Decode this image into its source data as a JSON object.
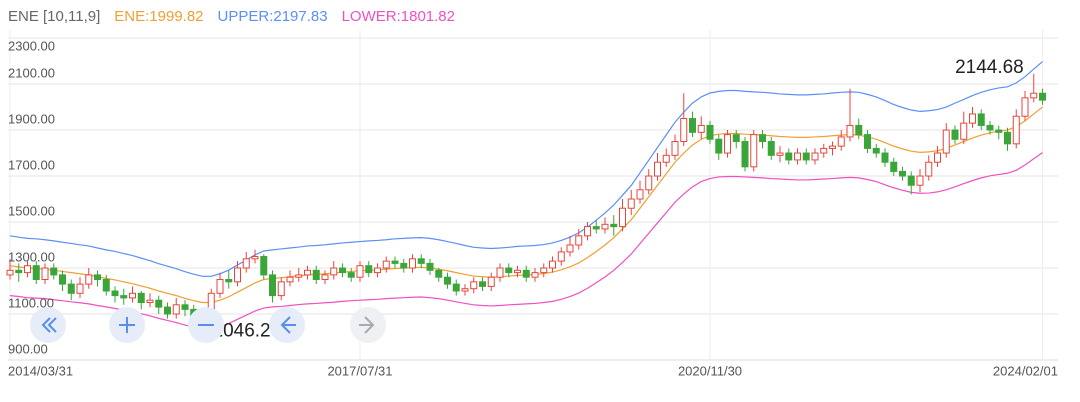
{
  "chart_data": {
    "type": "candlestick",
    "title": "ENE [10,11,9]",
    "categories": [
      "2014/03/31",
      null,
      null,
      null,
      null,
      null,
      null,
      null,
      null,
      null,
      null,
      null,
      null,
      null,
      null,
      null,
      null,
      null,
      null,
      null,
      null,
      null,
      null,
      null,
      null,
      null,
      null,
      null,
      null,
      null,
      null,
      null,
      null,
      null,
      null,
      null,
      null,
      null,
      null,
      null,
      "2017/07/31",
      null,
      null,
      null,
      null,
      null,
      null,
      null,
      null,
      null,
      null,
      null,
      null,
      null,
      null,
      null,
      null,
      null,
      null,
      null,
      null,
      null,
      null,
      null,
      null,
      null,
      null,
      null,
      null,
      null,
      null,
      null,
      null,
      null,
      null,
      null,
      null,
      null,
      null,
      null,
      "2020/11/30",
      null,
      null,
      null,
      null,
      null,
      null,
      null,
      null,
      null,
      null,
      null,
      null,
      null,
      null,
      null,
      null,
      null,
      null,
      null,
      null,
      null,
      null,
      null,
      null,
      null,
      null,
      null,
      null,
      null,
      null,
      null,
      null,
      null,
      null,
      null,
      null,
      null,
      "2024/02/01"
    ],
    "open": [
      1270,
      1290,
      1280,
      1310,
      1250,
      1300,
      1270,
      1230,
      1190,
      1230,
      1270,
      1250,
      1200,
      1180,
      1170,
      1190,
      1150,
      1160,
      1130,
      1100,
      1140,
      1120,
      1080,
      1090,
      1190,
      1250,
      1240,
      1300,
      1340,
      1350,
      1270,
      1180,
      1240,
      1260,
      1270,
      1290,
      1250,
      1270,
      1300,
      1280,
      1260,
      1310,
      1280,
      1300,
      1330,
      1320,
      1300,
      1340,
      1320,
      1290,
      1260,
      1230,
      1200,
      1210,
      1240,
      1220,
      1260,
      1300,
      1280,
      1290,
      1260,
      1280,
      1300,
      1330,
      1370,
      1400,
      1440,
      1480,
      1470,
      1490,
      1480,
      1560,
      1600,
      1640,
      1700,
      1760,
      1790,
      1850,
      1950,
      1890,
      1920,
      1860,
      1800,
      1880,
      1850,
      1740,
      1880,
      1850,
      1790,
      1800,
      1770,
      1800,
      1770,
      1800,
      1820,
      1830,
      1870,
      1920,
      1880,
      1820,
      1800,
      1760,
      1720,
      1700,
      1660,
      1700,
      1760,
      1800,
      1900,
      1860,
      1930,
      1970,
      1920,
      1900,
      1890,
      1840,
      1960,
      2040,
      2060
    ],
    "high": [
      1340,
      1320,
      1330,
      1330,
      1320,
      1320,
      1290,
      1250,
      1260,
      1300,
      1290,
      1270,
      1220,
      1210,
      1220,
      1200,
      1190,
      1180,
      1150,
      1170,
      1160,
      1140,
      1110,
      1210,
      1280,
      1290,
      1330,
      1370,
      1380,
      1360,
      1290,
      1260,
      1290,
      1300,
      1310,
      1310,
      1290,
      1330,
      1320,
      1300,
      1330,
      1330,
      1320,
      1350,
      1350,
      1340,
      1360,
      1360,
      1340,
      1300,
      1280,
      1250,
      1230,
      1260,
      1260,
      1280,
      1320,
      1320,
      1310,
      1310,
      1300,
      1320,
      1350,
      1390,
      1440,
      1470,
      1500,
      1510,
      1520,
      1530,
      1600,
      1640,
      1680,
      1730,
      1800,
      1820,
      1880,
      2060,
      1980,
      1960,
      1940,
      1880,
      1900,
      1900,
      1870,
      1900,
      1900,
      1870,
      1830,
      1820,
      1820,
      1820,
      1820,
      1840,
      1850,
      1900,
      2080,
      1950,
      1900,
      1840,
      1820,
      1780,
      1740,
      1720,
      1730,
      1790,
      1830,
      1930,
      1920,
      1980,
      2000,
      1990,
      1940,
      1920,
      1910,
      1990,
      2070,
      2144.68,
      2080
    ],
    "low": [
      1250,
      1240,
      1260,
      1230,
      1230,
      1250,
      1200,
      1160,
      1170,
      1210,
      1220,
      1180,
      1150,
      1140,
      1150,
      1120,
      1130,
      1100,
      1080,
      1080,
      1090,
      1060,
      1046.23,
      1070,
      1170,
      1210,
      1220,
      1280,
      1320,
      1250,
      1150,
      1160,
      1220,
      1240,
      1250,
      1230,
      1230,
      1250,
      1260,
      1240,
      1240,
      1260,
      1260,
      1280,
      1300,
      1280,
      1280,
      1300,
      1270,
      1240,
      1210,
      1180,
      1180,
      1190,
      1200,
      1200,
      1240,
      1260,
      1260,
      1240,
      1240,
      1260,
      1280,
      1310,
      1350,
      1380,
      1420,
      1450,
      1450,
      1440,
      1460,
      1530,
      1580,
      1620,
      1680,
      1740,
      1770,
      1830,
      1870,
      1860,
      1840,
      1770,
      1780,
      1820,
      1720,
      1720,
      1820,
      1770,
      1760,
      1750,
      1750,
      1750,
      1750,
      1780,
      1790,
      1810,
      1850,
      1860,
      1800,
      1780,
      1740,
      1700,
      1680,
      1620,
      1630,
      1680,
      1740,
      1780,
      1840,
      1840,
      1910,
      1900,
      1880,
      1860,
      1810,
      1820,
      1940,
      2020,
      2010
    ],
    "close": [
      1290,
      1280,
      1310,
      1250,
      1300,
      1270,
      1230,
      1190,
      1230,
      1270,
      1250,
      1200,
      1180,
      1170,
      1190,
      1150,
      1160,
      1130,
      1100,
      1140,
      1120,
      1080,
      1090,
      1190,
      1250,
      1240,
      1300,
      1340,
      1350,
      1270,
      1180,
      1240,
      1260,
      1270,
      1290,
      1250,
      1270,
      1300,
      1280,
      1260,
      1310,
      1280,
      1300,
      1330,
      1320,
      1300,
      1340,
      1320,
      1290,
      1260,
      1230,
      1200,
      1210,
      1240,
      1220,
      1260,
      1300,
      1280,
      1290,
      1260,
      1280,
      1300,
      1330,
      1370,
      1400,
      1440,
      1480,
      1470,
      1490,
      1480,
      1560,
      1600,
      1640,
      1700,
      1760,
      1790,
      1850,
      1950,
      1890,
      1920,
      1860,
      1800,
      1880,
      1850,
      1740,
      1880,
      1850,
      1790,
      1800,
      1770,
      1800,
      1770,
      1800,
      1820,
      1830,
      1870,
      1920,
      1880,
      1820,
      1800,
      1760,
      1720,
      1700,
      1660,
      1700,
      1760,
      1800,
      1900,
      1860,
      1930,
      1970,
      1920,
      1900,
      1890,
      1840,
      1960,
      2040,
      2060,
      2030
    ],
    "up_color": "#e8453c",
    "down_color": "#3aa63a",
    "series": [
      {
        "name": "ENE:1999.82",
        "color": "#f0a030",
        "values": [
          1310,
          1305,
          1300,
          1298,
          1295,
          1290,
          1285,
          1280,
          1275,
          1270,
          1262,
          1255,
          1248,
          1240,
          1232,
          1222,
          1212,
          1200,
          1190,
          1180,
          1168,
          1158,
          1150,
          1150,
          1160,
          1175,
          1195,
          1215,
          1235,
          1250,
          1255,
          1258,
          1262,
          1266,
          1270,
          1272,
          1275,
          1278,
          1282,
          1285,
          1288,
          1290,
          1292,
          1295,
          1298,
          1300,
          1302,
          1303,
          1300,
          1295,
          1288,
          1280,
          1272,
          1265,
          1262,
          1260,
          1262,
          1265,
          1268,
          1270,
          1272,
          1276,
          1282,
          1292,
          1305,
          1322,
          1345,
          1372,
          1400,
          1432,
          1470,
          1510,
          1560,
          1610,
          1660,
          1710,
          1760,
          1800,
          1835,
          1860,
          1875,
          1882,
          1885,
          1885,
          1882,
          1880,
          1878,
          1875,
          1872,
          1870,
          1868,
          1868,
          1870,
          1872,
          1875,
          1878,
          1880,
          1878,
          1870,
          1860,
          1845,
          1830,
          1818,
          1808,
          1803,
          1805,
          1810,
          1820,
          1835,
          1850,
          1865,
          1878,
          1888,
          1895,
          1900,
          1915,
          1940,
          1970,
          1999.82
        ]
      },
      {
        "name": "UPPER:2197.83",
        "color": "#5b8ff9",
        "values": [
          1440,
          1434,
          1429,
          1427,
          1423,
          1418,
          1412,
          1407,
          1401,
          1396,
          1387,
          1379,
          1372,
          1363,
          1354,
          1343,
          1332,
          1319,
          1308,
          1297,
          1284,
          1273,
          1264,
          1264,
          1275,
          1291,
          1313,
          1335,
          1357,
          1374,
          1379,
          1383,
          1387,
          1391,
          1396,
          1398,
          1401,
          1405,
          1409,
          1412,
          1415,
          1418,
          1420,
          1423,
          1427,
          1429,
          1431,
          1432,
          1429,
          1423,
          1415,
          1407,
          1398,
          1390,
          1387,
          1385,
          1387,
          1390,
          1394,
          1396,
          1398,
          1402,
          1409,
          1420,
          1434,
          1453,
          1478,
          1508,
          1539,
          1574,
          1616,
          1659,
          1714,
          1769,
          1824,
          1879,
          1934,
          1978,
          2017,
          2044,
          2061,
          2068,
          2072,
          2072,
          2068,
          2066,
          2064,
          2061,
          2057,
          2055,
          2053,
          2053,
          2055,
          2057,
          2061,
          2064,
          2066,
          2064,
          2055,
          2044,
          2028,
          2011,
          1998,
          1987,
          1981,
          1984,
          1989,
          2000,
          2017,
          2033,
          2050,
          2064,
          2075,
          2083,
          2088,
          2105,
          2132,
          2165,
          2197.83
        ]
      },
      {
        "name": "LOWER:1801.82",
        "color": "#f050c0",
        "values": [
          1180,
          1176,
          1171,
          1169,
          1167,
          1162,
          1158,
          1153,
          1149,
          1144,
          1137,
          1131,
          1124,
          1117,
          1110,
          1101,
          1092,
          1081,
          1072,
          1063,
          1052,
          1043,
          1036,
          1036,
          1045,
          1059,
          1077,
          1095,
          1113,
          1126,
          1131,
          1133,
          1137,
          1141,
          1144,
          1146,
          1149,
          1151,
          1155,
          1158,
          1160,
          1162,
          1164,
          1167,
          1169,
          1171,
          1173,
          1174,
          1171,
          1167,
          1160,
          1153,
          1146,
          1140,
          1137,
          1135,
          1137,
          1140,
          1142,
          1144,
          1146,
          1150,
          1155,
          1164,
          1176,
          1191,
          1212,
          1236,
          1261,
          1290,
          1324,
          1361,
          1406,
          1451,
          1496,
          1541,
          1586,
          1622,
          1653,
          1676,
          1689,
          1696,
          1698,
          1698,
          1696,
          1694,
          1692,
          1689,
          1687,
          1685,
          1683,
          1683,
          1685,
          1687,
          1689,
          1692,
          1694,
          1692,
          1685,
          1676,
          1662,
          1649,
          1638,
          1629,
          1625,
          1626,
          1631,
          1640,
          1653,
          1667,
          1680,
          1692,
          1701,
          1707,
          1712,
          1725,
          1748,
          1775,
          1801.82
        ]
      }
    ],
    "ylim": [
      900,
      2335
    ],
    "yticks": [
      {
        "value": 900,
        "label": "900.00"
      },
      {
        "value": 1100,
        "label": "1100.00"
      },
      {
        "value": 1300,
        "label": "1300.00"
      },
      {
        "value": 1500,
        "label": "1500.00"
      },
      {
        "value": 1700,
        "label": "1700.00"
      },
      {
        "value": 1900,
        "label": "1900.00"
      },
      {
        "value": 2100,
        "label": "2100.00"
      },
      {
        "value": 2300,
        "label": "2300.00"
      }
    ],
    "grid": true
  }
}
